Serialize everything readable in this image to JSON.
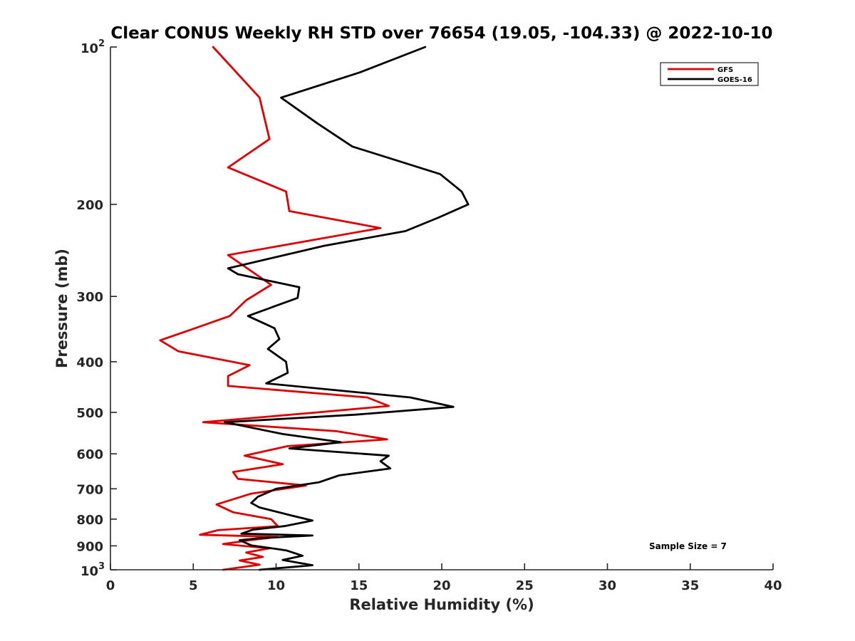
{
  "chart_data": {
    "type": "line",
    "title": "Clear CONUS Weekly RH STD over 76654 (19.05, -104.33) @ 2022-10-10",
    "xlabel": "Relative Humidity (%)",
    "ylabel": "Pressure (mb)",
    "xlim": [
      0,
      40
    ],
    "ylim": [
      100,
      1000
    ],
    "yscale": "log",
    "y_reversed": true,
    "grid": false,
    "legend_position": "top-right",
    "x_ticks": [
      0,
      5,
      10,
      15,
      20,
      25,
      30,
      35,
      40
    ],
    "x_tick_labels": [
      "0",
      "5",
      "10",
      "15",
      "20",
      "25",
      "30",
      "35",
      "40"
    ],
    "y_ticks": [
      100,
      200,
      300,
      400,
      500,
      600,
      700,
      800,
      900,
      1000
    ],
    "y_tick_labels": [
      {
        "base": "10",
        "exp": "2"
      },
      {
        "base": "200",
        "exp": ""
      },
      {
        "base": "300",
        "exp": ""
      },
      {
        "base": "400",
        "exp": ""
      },
      {
        "base": "500",
        "exp": ""
      },
      {
        "base": "600",
        "exp": ""
      },
      {
        "base": "700",
        "exp": ""
      },
      {
        "base": "800",
        "exp": ""
      },
      {
        "base": "900",
        "exp": ""
      },
      {
        "base": "10",
        "exp": "3"
      }
    ],
    "annotation": "Sample Size = 7",
    "series": [
      {
        "name": "GFS",
        "color": "#dd0000",
        "points": [
          [
            6.2,
            100
          ],
          [
            9.0,
            125
          ],
          [
            9.6,
            150
          ],
          [
            7.1,
            170
          ],
          [
            10.6,
            189
          ],
          [
            10.8,
            206
          ],
          [
            16.3,
            222
          ],
          [
            7.1,
            250
          ],
          [
            9.7,
            285
          ],
          [
            8.2,
            305
          ],
          [
            7.2,
            327
          ],
          [
            4.9,
            347
          ],
          [
            3.0,
            364
          ],
          [
            4.1,
            382
          ],
          [
            8.4,
            406
          ],
          [
            7.1,
            426
          ],
          [
            7.1,
            445
          ],
          [
            15.5,
            468
          ],
          [
            16.8,
            486
          ],
          [
            12.5,
            500
          ],
          [
            5.6,
            522
          ],
          [
            13.6,
            543
          ],
          [
            16.7,
            563
          ],
          [
            10.7,
            580
          ],
          [
            8.1,
            605
          ],
          [
            10.4,
            628
          ],
          [
            7.4,
            650
          ],
          [
            7.7,
            670
          ],
          [
            11.8,
            690
          ],
          [
            8.5,
            715
          ],
          [
            6.4,
            750
          ],
          [
            7.4,
            776
          ],
          [
            9.7,
            800
          ],
          [
            10.1,
            825
          ],
          [
            6.5,
            840
          ],
          [
            5.4,
            857
          ],
          [
            10.1,
            865
          ],
          [
            8.4,
            878
          ],
          [
            6.8,
            893
          ],
          [
            9.6,
            910
          ],
          [
            8.2,
            927
          ],
          [
            9.2,
            945
          ],
          [
            7.8,
            960
          ],
          [
            9.0,
            978
          ],
          [
            6.8,
            1000
          ]
        ]
      },
      {
        "name": "GOES-16",
        "color": "#000000",
        "points": [
          [
            19.0,
            100
          ],
          [
            15.0,
            112
          ],
          [
            10.3,
            125
          ],
          [
            12.5,
            140
          ],
          [
            14.6,
            155
          ],
          [
            19.9,
            175
          ],
          [
            21.2,
            189
          ],
          [
            21.6,
            200
          ],
          [
            19.8,
            212
          ],
          [
            17.8,
            225
          ],
          [
            12.9,
            240
          ],
          [
            7.1,
            265
          ],
          [
            7.7,
            272
          ],
          [
            11.4,
            288
          ],
          [
            11.3,
            302
          ],
          [
            8.3,
            327
          ],
          [
            9.9,
            345
          ],
          [
            10.2,
            362
          ],
          [
            9.5,
            378
          ],
          [
            10.6,
            400
          ],
          [
            10.7,
            420
          ],
          [
            9.4,
            440
          ],
          [
            18.1,
            468
          ],
          [
            20.7,
            488
          ],
          [
            14.8,
            505
          ],
          [
            6.9,
            522
          ],
          [
            10.4,
            550
          ],
          [
            13.9,
            570
          ],
          [
            10.8,
            586
          ],
          [
            16.8,
            605
          ],
          [
            16.3,
            620
          ],
          [
            16.9,
            640
          ],
          [
            13.8,
            660
          ],
          [
            12.6,
            680
          ],
          [
            10.0,
            700
          ],
          [
            8.9,
            725
          ],
          [
            8.5,
            745
          ],
          [
            9.0,
            760
          ],
          [
            10.9,
            787
          ],
          [
            12.2,
            805
          ],
          [
            10.5,
            825
          ],
          [
            8.6,
            838
          ],
          [
            7.9,
            853
          ],
          [
            12.2,
            860
          ],
          [
            9.0,
            870
          ],
          [
            7.8,
            878
          ],
          [
            8.5,
            898
          ],
          [
            10.6,
            918
          ],
          [
            11.6,
            940
          ],
          [
            10.4,
            958
          ],
          [
            12.2,
            980
          ],
          [
            9.0,
            1000
          ]
        ]
      }
    ]
  }
}
